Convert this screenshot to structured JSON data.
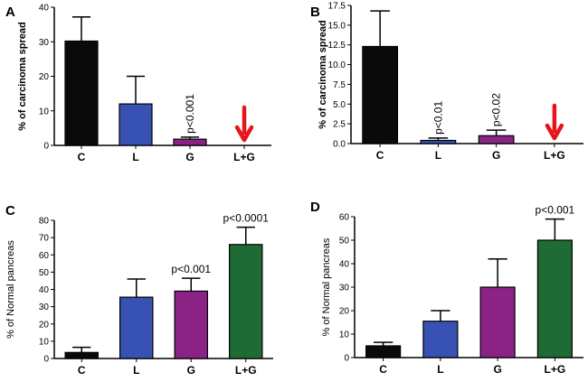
{
  "colors": {
    "C": "#0a0a0a",
    "L": "#3852b4",
    "G": "#8b2387",
    "LG": "#1f6b36",
    "arrow": "#e8141b"
  },
  "chart_data": [
    {
      "panel": "A",
      "type": "bar",
      "categories": [
        "C",
        "L",
        "G",
        "L+G"
      ],
      "values": [
        30.2,
        12.0,
        1.8,
        0
      ],
      "errors": [
        7.0,
        8.0,
        0.6,
        0
      ],
      "ylabel": "% of carcinoma spread",
      "ylim": [
        0,
        40
      ],
      "yticks": [
        "0",
        "10",
        "20",
        "30",
        "40"
      ],
      "annotations": [
        {
          "category": "G",
          "text": "p<0.001",
          "rotation": "vertical"
        }
      ],
      "arrow": {
        "category": "L+G",
        "color": "#e8141b"
      }
    },
    {
      "panel": "B",
      "type": "bar",
      "categories": [
        "C",
        "L",
        "G",
        "L+G"
      ],
      "values": [
        12.3,
        0.4,
        1.0,
        0
      ],
      "errors": [
        4.5,
        0.3,
        0.7,
        0
      ],
      "ylabel": "% of carcinoma spread",
      "ylim": [
        0,
        17.5
      ],
      "yticks": [
        "0.0",
        "2.5",
        "5.0",
        "7.5",
        "10.0",
        "12.5",
        "15.0",
        "17.5"
      ],
      "annotations": [
        {
          "category": "L",
          "text": "p<0.01",
          "rotation": "vertical"
        },
        {
          "category": "G",
          "text": "p<0.02",
          "rotation": "vertical"
        }
      ],
      "arrow": {
        "category": "L+G",
        "color": "#e8141b"
      }
    },
    {
      "panel": "C",
      "type": "bar",
      "categories": [
        "C",
        "L",
        "G",
        "L+G"
      ],
      "values": [
        3.5,
        35.5,
        39.0,
        66.0
      ],
      "errors": [
        3.0,
        10.5,
        7.5,
        10.0
      ],
      "ylabel": "% of Normal pancreas",
      "ylim": [
        0,
        80
      ],
      "yticks": [
        "0",
        "10",
        "20",
        "30",
        "40",
        "50",
        "60",
        "70",
        "80"
      ],
      "annotations": [
        {
          "category": "G",
          "text": "p<0.001",
          "rotation": "horizontal"
        },
        {
          "category": "L+G",
          "text": "p<0.0001",
          "rotation": "horizontal"
        }
      ]
    },
    {
      "panel": "D",
      "type": "bar",
      "categories": [
        "C",
        "L",
        "G",
        "L+G"
      ],
      "values": [
        5.0,
        15.5,
        30.0,
        50.0
      ],
      "errors": [
        1.5,
        4.5,
        12.0,
        9.0
      ],
      "ylabel": "% of Normal pancreas",
      "ylim": [
        0,
        60
      ],
      "yticks": [
        "0",
        "10",
        "20",
        "30",
        "40",
        "50",
        "60"
      ],
      "annotations": [
        {
          "category": "L+G",
          "text": "p<0.001",
          "rotation": "horizontal"
        }
      ]
    }
  ]
}
